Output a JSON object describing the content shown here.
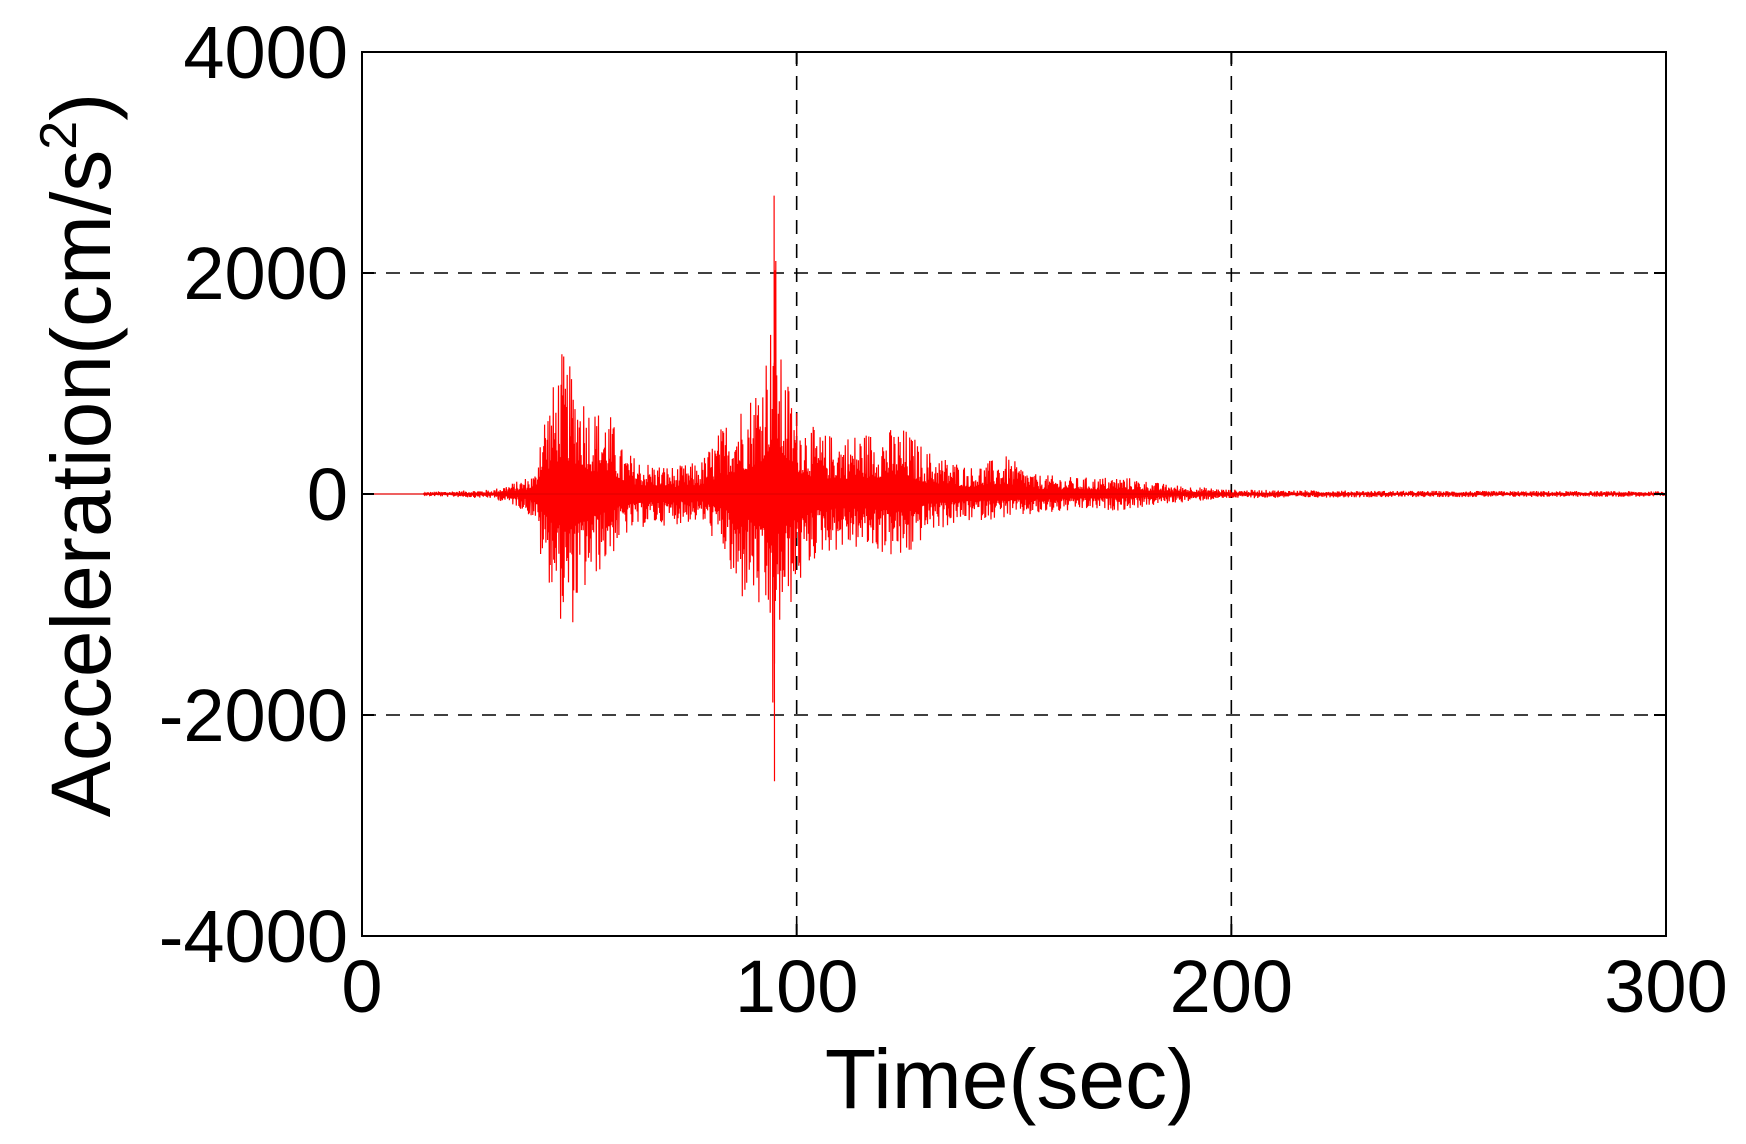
{
  "chart_data": {
    "type": "line",
    "title": "",
    "xlabel": "Time(sec)",
    "ylabel_main": "Acceleration(cm/s",
    "ylabel_sup": "2",
    "ylabel_close": ")",
    "xlim": [
      0,
      300
    ],
    "ylim": [
      -4000,
      4000
    ],
    "xticks": [
      0,
      100,
      200,
      300
    ],
    "yticks": [
      -4000,
      -2000,
      0,
      2000,
      4000
    ],
    "xtick_labels": [
      "0",
      "100",
      "200",
      "300"
    ],
    "ytick_labels": [
      "-4000",
      "-2000",
      "0",
      "2000",
      "4000"
    ],
    "grid": {
      "style": "dashed",
      "x_at": [
        100,
        200
      ],
      "y_at": [
        -2000,
        2000
      ]
    },
    "line_color": "#ff0000",
    "axis_color": "#000000",
    "series": [
      {
        "start_time": 14,
        "end_time": 300,
        "dt": 0.1,
        "envelope": [
          {
            "t": 0,
            "pos": 0,
            "neg": 0
          },
          {
            "t": 14,
            "pos": 0,
            "neg": 0
          },
          {
            "t": 15,
            "pos": 20,
            "neg": -20
          },
          {
            "t": 30,
            "pos": 40,
            "neg": -40
          },
          {
            "t": 36,
            "pos": 120,
            "neg": -120
          },
          {
            "t": 40,
            "pos": 200,
            "neg": -250
          },
          {
            "t": 41,
            "pos": 700,
            "neg": -600
          },
          {
            "t": 44,
            "pos": 1000,
            "neg": -900
          },
          {
            "t": 46,
            "pos": 1300,
            "neg": -1200
          },
          {
            "t": 48,
            "pos": 1150,
            "neg": -1250
          },
          {
            "t": 50,
            "pos": 1050,
            "neg": -1000
          },
          {
            "t": 53,
            "pos": 800,
            "neg": -800
          },
          {
            "t": 57,
            "pos": 750,
            "neg": -600
          },
          {
            "t": 60,
            "pos": 400,
            "neg": -400
          },
          {
            "t": 65,
            "pos": 300,
            "neg": -300
          },
          {
            "t": 72,
            "pos": 250,
            "neg": -280
          },
          {
            "t": 78,
            "pos": 300,
            "neg": -250
          },
          {
            "t": 84,
            "pos": 700,
            "neg": -600
          },
          {
            "t": 86,
            "pos": 800,
            "neg": -1100
          },
          {
            "t": 89,
            "pos": 900,
            "neg": -900
          },
          {
            "t": 92,
            "pos": 1200,
            "neg": -1200
          },
          {
            "t": 94,
            "pos": 1600,
            "neg": -1400
          },
          {
            "t": 94.8,
            "pos": 2700,
            "neg": -2600
          },
          {
            "t": 96,
            "pos": 1300,
            "neg": -1300
          },
          {
            "t": 100,
            "pos": 800,
            "neg": -900
          },
          {
            "t": 105,
            "pos": 550,
            "neg": -550
          },
          {
            "t": 112,
            "pos": 550,
            "neg": -500
          },
          {
            "t": 120,
            "pos": 600,
            "neg": -550
          },
          {
            "t": 125,
            "pos": 600,
            "neg": -650
          },
          {
            "t": 130,
            "pos": 400,
            "neg": -350
          },
          {
            "t": 140,
            "pos": 250,
            "neg": -250
          },
          {
            "t": 148,
            "pos": 350,
            "neg": -220
          },
          {
            "t": 155,
            "pos": 180,
            "neg": -200
          },
          {
            "t": 165,
            "pos": 150,
            "neg": -150
          },
          {
            "t": 175,
            "pos": 160,
            "neg": -150
          },
          {
            "t": 185,
            "pos": 90,
            "neg": -90
          },
          {
            "t": 200,
            "pos": 40,
            "neg": -40
          },
          {
            "t": 230,
            "pos": 30,
            "neg": -30
          },
          {
            "t": 300,
            "pos": 25,
            "neg": -25
          }
        ]
      }
    ]
  }
}
